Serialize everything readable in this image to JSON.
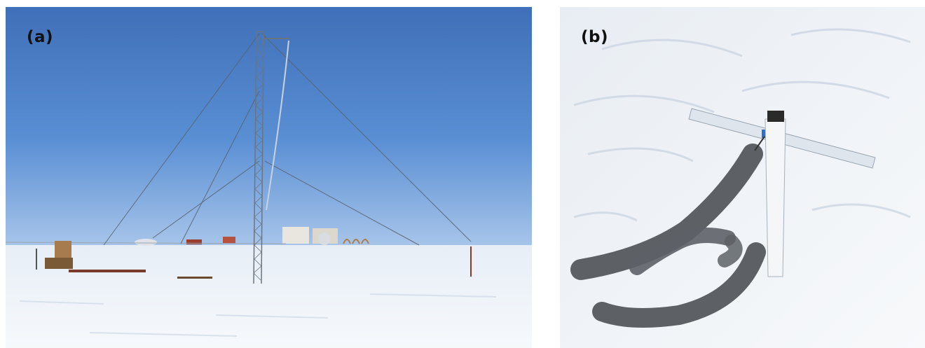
{
  "figure": {
    "panels": [
      {
        "label": "(a)",
        "subject": "meteorological-tower"
      },
      {
        "label": "(b)",
        "subject": "snow-sensor-mount"
      }
    ]
  }
}
